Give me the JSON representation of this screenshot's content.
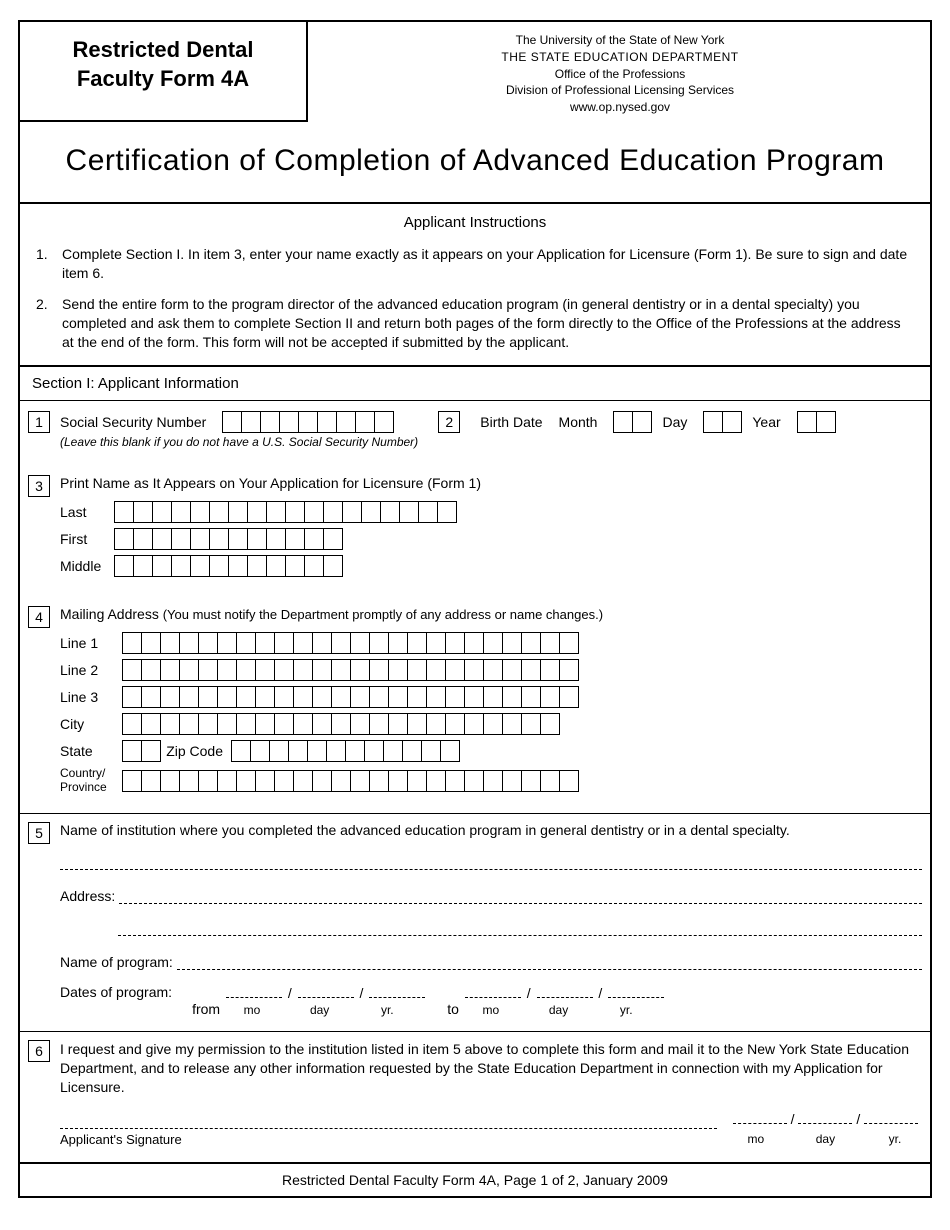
{
  "form": {
    "title_line1": "Restricted Dental",
    "title_line2": "Faculty Form 4A",
    "dept": {
      "line1": "The University of the State of New York",
      "line2": "THE STATE EDUCATION DEPARTMENT",
      "line3": "Office of the Professions",
      "line4": "Division of Professional Licensing Services",
      "url": "www.op.nysed.gov"
    },
    "main_title": "Certification of Completion of Advanced Education Program",
    "instructions_title": "Applicant Instructions",
    "instructions": [
      "Complete Section I. In item 3, enter your name exactly as it appears on your Application for Licensure (Form 1). Be sure to sign and date item 6.",
      "Send the entire form to the program director of the advanced education program (in general dentistry or in a dental specialty) you completed and ask them to complete Section II and return both pages of the form directly to the Office of the Professions at the address at the end of the form. This form will not be accepted if submitted by the applicant."
    ],
    "section1_title": "Section I: Applicant Information",
    "item1": {
      "num": "1",
      "label": "Social Security Number",
      "note": "(Leave this blank if you do not have a U.S. Social Security Number)"
    },
    "item2": {
      "num": "2",
      "label_birth": "Birth Date",
      "label_month": "Month",
      "label_day": "Day",
      "label_year": "Year"
    },
    "item3": {
      "num": "3",
      "label": "Print Name as It Appears on Your Application for Licensure (Form 1)",
      "last": "Last",
      "first": "First",
      "middle": "Middle"
    },
    "item4": {
      "num": "4",
      "label": "Mailing Address",
      "note": "(You must notify the Department promptly of any address or name changes.)",
      "line1": "Line 1",
      "line2": "Line 2",
      "line3": "Line 3",
      "city": "City",
      "state": "State",
      "zip": "Zip Code",
      "country": "Country/\nProvince"
    },
    "item5": {
      "num": "5",
      "label": "Name of institution where you completed the advanced education program in general dentistry or in a dental specialty.",
      "address": "Address:",
      "program": "Name of program:",
      "dates": "Dates of program:",
      "from": "from",
      "to": "to",
      "mo": "mo",
      "day": "day",
      "yr": "yr."
    },
    "item6": {
      "num": "6",
      "text": "I request and give my permission to the institution listed in item 5 above to complete this form and mail it to the New York State Education Department, and to release any other information requested by the State Education Department in connection with my Application for Licensure.",
      "signature": "Applicant's Signature",
      "mo": "mo",
      "day": "day",
      "yr": "yr."
    },
    "footer": "Restricted Dental Faculty Form 4A, Page 1 of 2, January 2009"
  },
  "box_counts": {
    "ssn": 9,
    "month": 2,
    "day": 2,
    "year": 2,
    "name_last": 18,
    "name_first": 12,
    "name_middle": 12,
    "addr_line": 24,
    "city": 23,
    "state": 2,
    "zip": 12,
    "country": 24
  },
  "colors": {
    "text": "#000000",
    "background": "#ffffff",
    "border": "#000000"
  }
}
